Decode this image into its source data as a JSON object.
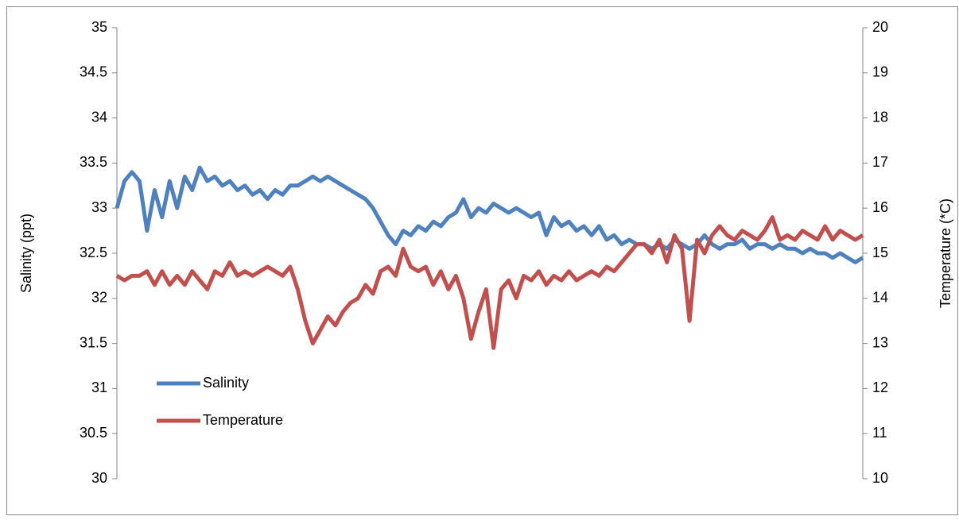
{
  "chart_data": {
    "type": "line",
    "y_label": "Salinity (ppt)",
    "y2_label": "Temperature (*C)",
    "categories": [
      null,
      null,
      null,
      null,
      null,
      null,
      null,
      null,
      null,
      null,
      null,
      null,
      null,
      null,
      null,
      null,
      null,
      null,
      null,
      null,
      null,
      null,
      null,
      null,
      null,
      null,
      null,
      null,
      null,
      null,
      null,
      null,
      null,
      null,
      null,
      null,
      null,
      null,
      null,
      null,
      null,
      null,
      null,
      null,
      null,
      null,
      null,
      null,
      null,
      null,
      null,
      null,
      null,
      null,
      null,
      null,
      null,
      null,
      null,
      null,
      null,
      null,
      null,
      null,
      null,
      null,
      null,
      null,
      null,
      null,
      null,
      null,
      null,
      null,
      null,
      null,
      null,
      null,
      null,
      null,
      null,
      null,
      null,
      null,
      null,
      null,
      null,
      null,
      null,
      null,
      null,
      null,
      null,
      null,
      null,
      null,
      null,
      null,
      null,
      null
    ],
    "ylim": [
      30,
      35
    ],
    "yticks": [
      30,
      30.5,
      31,
      31.5,
      32,
      32.5,
      33,
      33.5,
      34,
      34.5,
      35
    ],
    "y2lim": [
      10,
      20
    ],
    "y2ticks": [
      10,
      11,
      12,
      13,
      14,
      15,
      16,
      17,
      18,
      19,
      20
    ],
    "grid": false,
    "legend": "lower-left",
    "series": [
      {
        "name": "Salinity",
        "color": "#4f81bd",
        "values": [
          33.0,
          33.3,
          33.4,
          33.3,
          32.75,
          33.2,
          32.9,
          33.3,
          33.0,
          33.35,
          33.2,
          33.45,
          33.3,
          33.35,
          33.25,
          33.3,
          33.2,
          33.25,
          33.15,
          33.2,
          33.1,
          33.2,
          33.15,
          33.25,
          33.25,
          33.3,
          33.35,
          33.3,
          33.35,
          33.3,
          33.25,
          33.2,
          33.15,
          33.1,
          33.0,
          32.85,
          32.7,
          32.6,
          32.75,
          32.7,
          32.8,
          32.75,
          32.85,
          32.8,
          32.9,
          32.95,
          33.1,
          32.9,
          33.0,
          32.95,
          33.05,
          33.0,
          32.95,
          33.0,
          32.95,
          32.9,
          32.95,
          32.7,
          32.9,
          32.8,
          32.85,
          32.75,
          32.8,
          32.7,
          32.8,
          32.65,
          32.7,
          32.6,
          32.65,
          32.6,
          32.6,
          32.55,
          32.6,
          32.55,
          32.65,
          32.6,
          32.55,
          32.6,
          32.7,
          32.6,
          32.55,
          32.6,
          32.6,
          32.65,
          32.55,
          32.6,
          32.6,
          32.55,
          32.6,
          32.55,
          32.55,
          32.5,
          32.55,
          32.5,
          32.5,
          32.45,
          32.5,
          32.45,
          32.4,
          32.45
        ]
      },
      {
        "name": "Temperature",
        "color": "#c0504d",
        "axis": "y2",
        "values": [
          14.5,
          14.4,
          14.5,
          14.5,
          14.6,
          14.3,
          14.6,
          14.3,
          14.5,
          14.3,
          14.6,
          14.4,
          14.2,
          14.6,
          14.5,
          14.8,
          14.5,
          14.6,
          14.5,
          14.6,
          14.7,
          14.6,
          14.5,
          14.7,
          14.2,
          13.5,
          13.0,
          13.3,
          13.6,
          13.4,
          13.7,
          13.9,
          14.0,
          14.3,
          14.1,
          14.6,
          14.7,
          14.5,
          15.1,
          14.7,
          14.6,
          14.7,
          14.3,
          14.6,
          14.2,
          14.5,
          14.0,
          13.1,
          13.7,
          14.2,
          12.9,
          14.2,
          14.4,
          14.0,
          14.5,
          14.4,
          14.6,
          14.3,
          14.5,
          14.4,
          14.6,
          14.4,
          14.5,
          14.6,
          14.5,
          14.7,
          14.6,
          14.8,
          15.0,
          15.2,
          15.2,
          15.0,
          15.3,
          14.8,
          15.4,
          15.1,
          13.5,
          15.3,
          15.0,
          15.4,
          15.6,
          15.4,
          15.3,
          15.5,
          15.4,
          15.3,
          15.5,
          15.8,
          15.3,
          15.4,
          15.3,
          15.5,
          15.4,
          15.3,
          15.6,
          15.3,
          15.5,
          15.4,
          15.3,
          15.4
        ]
      }
    ]
  }
}
